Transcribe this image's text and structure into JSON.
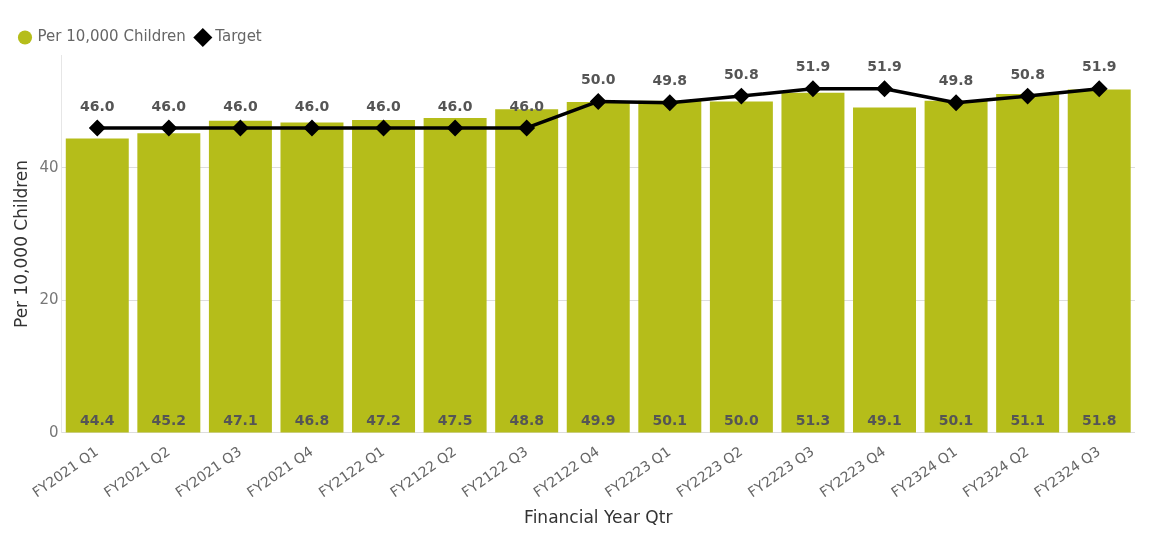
{
  "chart_data": {
    "type": "bar",
    "xlabel": "Financial Year Qtr",
    "ylabel": "Per 10,000 Children",
    "categories": [
      "FY2021 Q1",
      "FY2021 Q2",
      "FY2021 Q3",
      "FY2021 Q4",
      "FY2122 Q1",
      "FY2122 Q2",
      "FY2122 Q3",
      "FY2122 Q4",
      "FY2223 Q1",
      "FY2223 Q2",
      "FY2223 Q3",
      "FY2223 Q4",
      "FY2324 Q1",
      "FY2324 Q2",
      "FY2324 Q3"
    ],
    "series": [
      {
        "name": "Per 10,000 Children",
        "color": "#b5bd1a",
        "values": [
          44.4,
          45.2,
          47.1,
          46.8,
          47.2,
          47.5,
          48.8,
          49.9,
          50.1,
          50.0,
          51.3,
          49.1,
          50.1,
          51.1,
          51.8
        ],
        "value_labels": [
          "44.4",
          "45.2",
          "47.1",
          "46.8",
          "47.2",
          "47.5",
          "48.8",
          "49.9",
          "50.1",
          "50.0",
          "51.3",
          "49.1",
          "50.1",
          "51.1",
          "51.8"
        ]
      },
      {
        "name": "Target",
        "type": "line",
        "color": "#000000",
        "marker": "diamond",
        "values": [
          46.0,
          46.0,
          46.0,
          46.0,
          46.0,
          46.0,
          46.0,
          50.0,
          49.8,
          50.8,
          51.9,
          51.9,
          49.8,
          50.8,
          51.9
        ],
        "value_labels": [
          "46.0",
          "46.0",
          "46.0",
          "46.0",
          "46.0",
          "46.0",
          "46.0",
          "50.0",
          "49.8",
          "50.8",
          "51.9",
          "51.9",
          "49.8",
          "50.8",
          "51.9"
        ]
      }
    ],
    "ylim": [
      0,
      57
    ],
    "yticks": [
      0,
      20,
      40
    ],
    "grid": "y",
    "legend": "top left"
  }
}
